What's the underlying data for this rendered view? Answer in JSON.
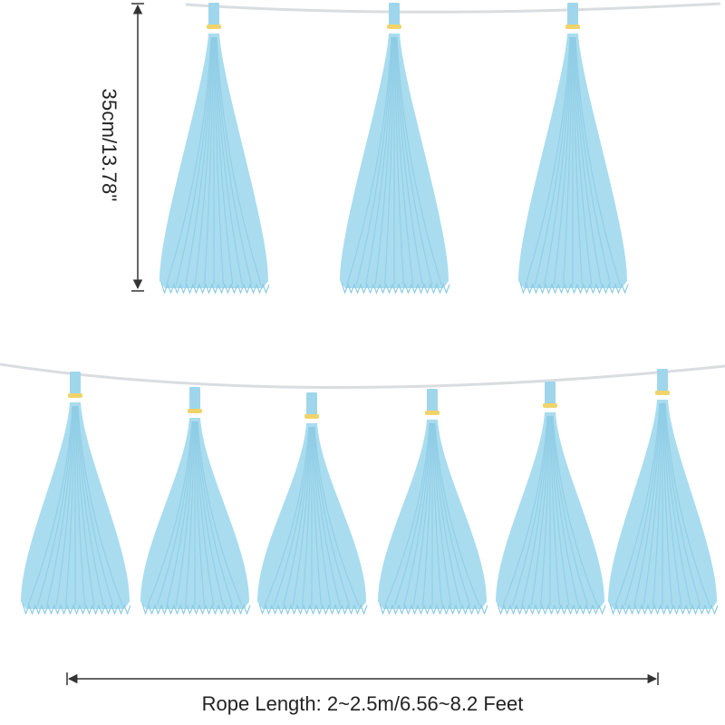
{
  "dimensions": {
    "height_text": "35cm/13.78\"",
    "rope_length_text": "Rope Length: 2~2.5m/6.56~8.2 Feet"
  },
  "garland": {
    "top_row_tassel_count": 3,
    "bottom_row_tassel_count": 6
  },
  "colors": {
    "tassel": "#a9dcef",
    "tassel_shade": "#8ccbe4",
    "clip": "#9fd6ec",
    "ring": "#f0d36a",
    "rope": "#d9dde0",
    "measure_line": "#333333",
    "background": "#ffffff"
  }
}
